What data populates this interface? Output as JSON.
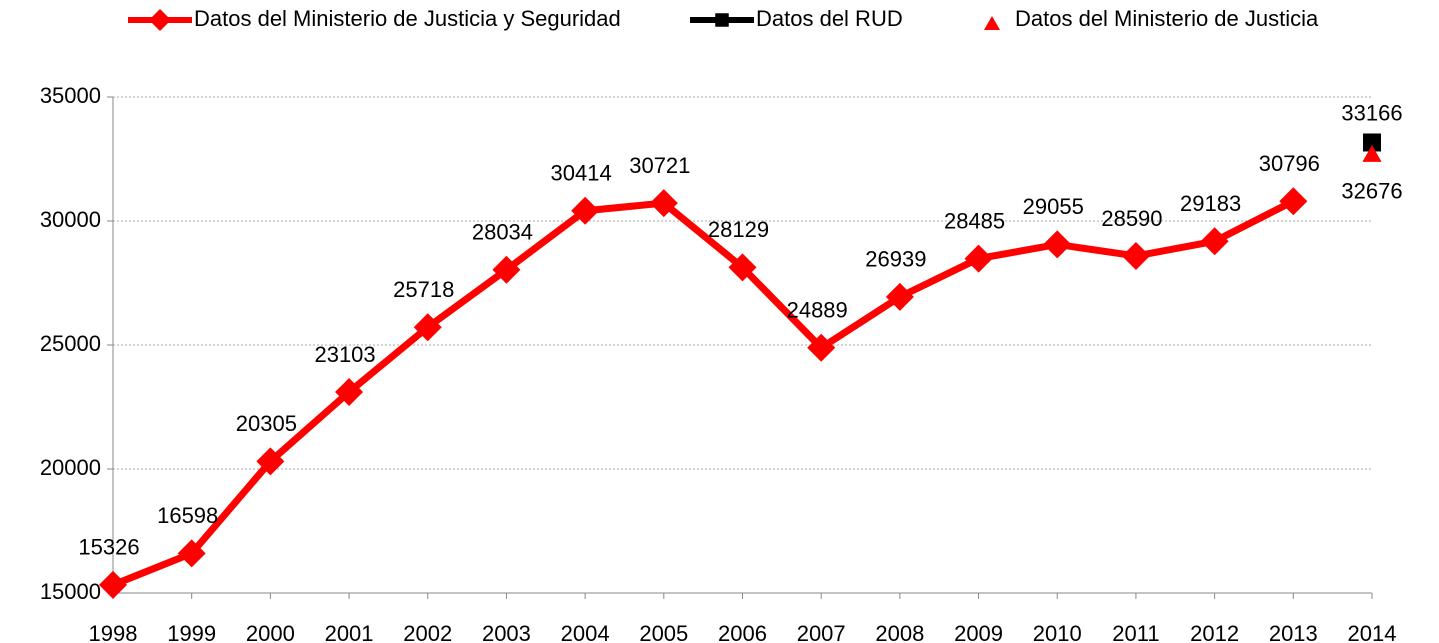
{
  "chart_data": {
    "type": "line",
    "categories": [
      "1998",
      "1999",
      "2000",
      "2001",
      "2002",
      "2003",
      "2004",
      "2005",
      "2006",
      "2007",
      "2008",
      "2009",
      "2010",
      "2011",
      "2012",
      "2013",
      "2014"
    ],
    "series": [
      {
        "name": "Datos del Ministerio de Justicia y Seguridad",
        "color": "#ff0000",
        "marker": "diamond",
        "line": true,
        "values": [
          15326,
          16598,
          20305,
          23103,
          25718,
          28034,
          30414,
          30721,
          28129,
          24889,
          26939,
          28485,
          29055,
          28590,
          29183,
          30796,
          null
        ]
      },
      {
        "name": "Datos del RUD",
        "color": "#000000",
        "marker": "square",
        "line": false,
        "values": [
          null,
          null,
          null,
          null,
          null,
          null,
          null,
          null,
          null,
          null,
          null,
          null,
          null,
          null,
          null,
          null,
          33166
        ]
      },
      {
        "name": "Datos del Ministerio de Justicia",
        "color": "#ff0000",
        "marker": "triangle",
        "line": false,
        "values": [
          null,
          null,
          null,
          null,
          null,
          null,
          null,
          null,
          null,
          null,
          null,
          null,
          null,
          null,
          null,
          null,
          32676
        ]
      }
    ],
    "ylim": [
      15000,
      35000
    ],
    "yticks": [
      15000,
      20000,
      25000,
      30000,
      35000
    ],
    "grid": true,
    "legend": "top"
  }
}
